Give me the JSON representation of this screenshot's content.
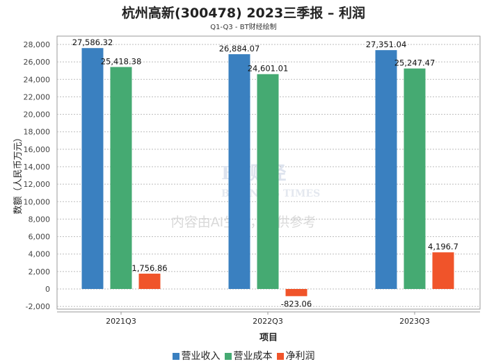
{
  "chart_data": {
    "type": "bar",
    "title": "杭州高新(300478) 2023三季报 – 利润",
    "subtitle": "Q1-Q3 - BT财经绘制",
    "xlabel": "项目",
    "ylabel": "数额（人民币万元）",
    "categories": [
      "2021Q3",
      "2022Q3",
      "2023Q3"
    ],
    "series": [
      {
        "name": "营业收入",
        "color": "#3a80c0",
        "values": [
          27586.32,
          26884.07,
          27351.04
        ],
        "labels": [
          "27,586.32",
          "26,884.07",
          "27,351.04"
        ]
      },
      {
        "name": "营业成本",
        "color": "#45aa72",
        "values": [
          25418.38,
          24601.01,
          25247.47
        ],
        "labels": [
          "25,418.38",
          "24,601.01",
          "25,247.47"
        ]
      },
      {
        "name": "净利润",
        "color": "#f0542a",
        "values": [
          1756.86,
          -823.06,
          4196.7
        ],
        "labels": [
          "1,756.86",
          "-823.06",
          "4,196.7"
        ]
      }
    ],
    "ylim": [
      -2000,
      28000
    ],
    "yticks": [
      -2000,
      0,
      2000,
      4000,
      6000,
      8000,
      10000,
      12000,
      14000,
      16000,
      18000,
      20000,
      22000,
      24000,
      26000,
      28000
    ],
    "grid": true,
    "legend": "bottom"
  },
  "watermark": {
    "brand": "BT财经",
    "brand_en": "BUSINESS TIMES",
    "notice": "内容由AI生成，仅供参考"
  }
}
